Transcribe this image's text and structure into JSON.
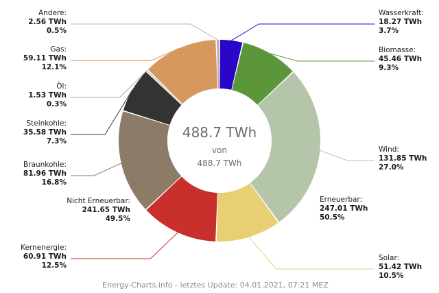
{
  "chart_data": {
    "type": "pie",
    "subtype": "donut",
    "unit": "TWh",
    "center": {
      "value": "488.7 TWh",
      "von": "von",
      "total": "488.7 TWh"
    },
    "inner_ring": [
      {
        "name": "Wasserkraft",
        "value": 18.27,
        "value_label": "18.27 TWh",
        "percent_label": "3.7%",
        "color": "#2a06c8"
      },
      {
        "name": "Biomasse",
        "value": 45.46,
        "value_label": "45.46 TWh",
        "percent_label": "9.3%",
        "color": "#5b963b"
      },
      {
        "name": "Wind",
        "value": 131.85,
        "value_label": "131.85 TWh",
        "percent_label": "27.0%",
        "color": "#b4c5a9"
      },
      {
        "name": "Solar",
        "value": 51.42,
        "value_label": "51.42 TWh",
        "percent_label": "10.5%",
        "color": "#e8cf73"
      },
      {
        "name": "Kernenergie",
        "value": 60.91,
        "value_label": "60.91 TWh",
        "percent_label": "12.5%",
        "color": "#c9302c"
      },
      {
        "name": "Braunkohle",
        "value": 81.96,
        "value_label": "81.96 TWh",
        "percent_label": "16.8%",
        "color": "#8c7b66"
      },
      {
        "name": "Steinkohle",
        "value": 35.58,
        "value_label": "35.58 TWh",
        "percent_label": "7.3%",
        "color": "#333333"
      },
      {
        "name": "Öl",
        "value": 1.53,
        "value_label": "1.53 TWh",
        "percent_label": "0.3%",
        "color": "#a6a6a6"
      },
      {
        "name": "Gas",
        "value": 59.11,
        "value_label": "59.11 TWh",
        "percent_label": "12.1%",
        "color": "#d6985d"
      },
      {
        "name": "Andere",
        "value": 2.56,
        "value_label": "2.56 TWh",
        "percent_label": "0.5%",
        "color": "#c4a8b0"
      }
    ],
    "outer_ring": [
      {
        "name": "Erneuerbar",
        "value": 247.01,
        "value_label": "247.01 TWh",
        "percent_label": "50.5%",
        "color": "#dcdcdc"
      },
      {
        "name": "Nicht Erneuerbar",
        "value": 241.65,
        "value_label": "241.65 TWh",
        "percent_label": "49.5%",
        "color": "#ffffff"
      }
    ]
  },
  "footer": "Energy-Charts.info - letztes Update: 04.01.2021, 07:21 MEZ"
}
